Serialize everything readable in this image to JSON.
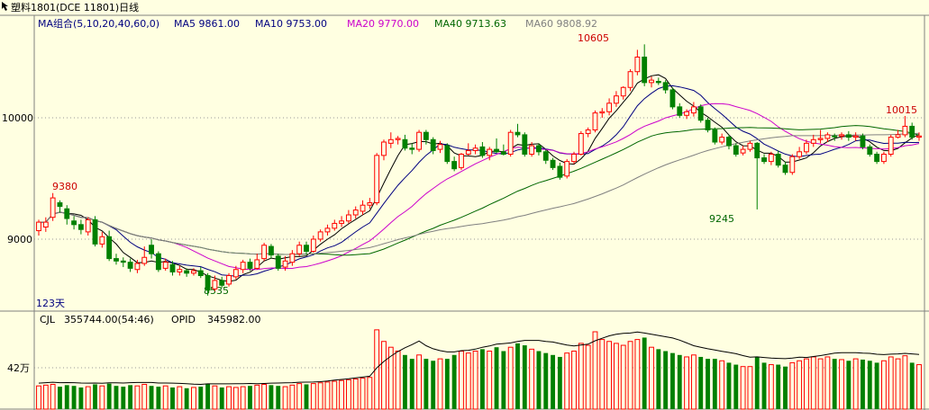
{
  "header": {
    "icon": "arrow-icon",
    "title": "塑料1801(DCE 11801)日线",
    "indicator_name": "MA组合(5,10,20,40,60,0)",
    "ma_labels": [
      {
        "text": "MA5 9861.00",
        "color": "#000080"
      },
      {
        "text": "MA10 9753.00",
        "color": "#000080"
      },
      {
        "text": "MA20 9770.00",
        "color": "#CC00CC"
      },
      {
        "text": "MA40 9713.63",
        "color": "#006600"
      },
      {
        "text": "MA60 9808.92",
        "color": "#808080"
      }
    ]
  },
  "volume_header": {
    "cjl": "CJL",
    "cjl_value": "355744.00(54:46)",
    "opid": "OPID",
    "opid_value": "345982.00"
  },
  "labels": {
    "days": "123天",
    "y_tick_10000": "10000",
    "y_tick_9000": "9000",
    "vol_tick": "42万"
  },
  "annotations": {
    "high_left": "9380",
    "low_left": "8535",
    "peak": "10605",
    "mid_low": "9245",
    "right_high": "10015"
  },
  "colors": {
    "up": "#FF0000",
    "down": "#008000",
    "bg": "#FFFFE1"
  },
  "chart_data": {
    "type": "candlestick",
    "y_ticks": [
      9000,
      10000
    ],
    "bars": [
      [
        9070,
        9140,
        9160,
        9030,
        "u",
        60
      ],
      [
        9100,
        9140,
        9180,
        9060,
        "u",
        62
      ],
      [
        9180,
        9340,
        9380,
        9150,
        "u",
        64
      ],
      [
        9300,
        9270,
        9320,
        9220,
        "d",
        58
      ],
      [
        9250,
        9170,
        9280,
        9120,
        "d",
        62
      ],
      [
        9150,
        9120,
        9190,
        9080,
        "d",
        60
      ],
      [
        9120,
        9080,
        9160,
        9040,
        "d",
        56
      ],
      [
        9060,
        9160,
        9180,
        9030,
        "u",
        58
      ],
      [
        9160,
        8960,
        9190,
        8940,
        "d",
        64
      ],
      [
        8960,
        9020,
        9060,
        8930,
        "u",
        60
      ],
      [
        9020,
        8840,
        9070,
        8820,
        "d",
        66
      ],
      [
        8840,
        8820,
        8880,
        8790,
        "d",
        60
      ],
      [
        8820,
        8810,
        8850,
        8770,
        "d",
        58
      ],
      [
        8810,
        8760,
        8840,
        8730,
        "d",
        62
      ],
      [
        8750,
        8800,
        8830,
        8720,
        "u",
        60
      ],
      [
        8800,
        8850,
        8940,
        8780,
        "u",
        64
      ],
      [
        8950,
        8880,
        9000,
        8840,
        "d",
        60
      ],
      [
        8880,
        8750,
        8900,
        8730,
        "d",
        58
      ],
      [
        8760,
        8810,
        8840,
        8740,
        "u",
        60
      ],
      [
        8790,
        8730,
        8820,
        8700,
        "d",
        56
      ],
      [
        8730,
        8750,
        8780,
        8700,
        "u",
        58
      ],
      [
        8740,
        8720,
        8760,
        8690,
        "d",
        54
      ],
      [
        8720,
        8740,
        8760,
        8700,
        "u",
        56
      ],
      [
        8740,
        8700,
        8770,
        8680,
        "d",
        58
      ],
      [
        8700,
        8580,
        8720,
        8535,
        "d",
        66
      ],
      [
        8590,
        8660,
        8700,
        8570,
        "u",
        60
      ],
      [
        8660,
        8620,
        8690,
        8600,
        "d",
        56
      ],
      [
        8630,
        8700,
        8720,
        8610,
        "u",
        58
      ],
      [
        8690,
        8750,
        8780,
        8670,
        "u",
        56
      ],
      [
        8750,
        8810,
        8830,
        8720,
        "u",
        58
      ],
      [
        8810,
        8760,
        8840,
        8740,
        "d",
        60
      ],
      [
        8760,
        8830,
        8880,
        8750,
        "u",
        62
      ],
      [
        8840,
        8950,
        8970,
        8820,
        "u",
        64
      ],
      [
        8940,
        8870,
        8960,
        8840,
        "d",
        62
      ],
      [
        8860,
        8760,
        8880,
        8740,
        "d",
        60
      ],
      [
        8770,
        8820,
        8860,
        8740,
        "u",
        58
      ],
      [
        8810,
        8880,
        8910,
        8780,
        "u",
        62
      ],
      [
        8880,
        8950,
        8980,
        8860,
        "u",
        66
      ],
      [
        8950,
        8900,
        8980,
        8870,
        "d",
        64
      ],
      [
        8900,
        9000,
        9030,
        8890,
        "u",
        66
      ],
      [
        9000,
        9060,
        9080,
        8980,
        "u",
        68
      ],
      [
        9060,
        9090,
        9120,
        9030,
        "u",
        70
      ],
      [
        9090,
        9130,
        9160,
        9070,
        "u",
        72
      ],
      [
        9130,
        9150,
        9190,
        9100,
        "u",
        74
      ],
      [
        9150,
        9200,
        9240,
        9130,
        "u",
        76
      ],
      [
        9200,
        9240,
        9270,
        9170,
        "u",
        78
      ],
      [
        9230,
        9280,
        9320,
        9200,
        "u",
        80
      ],
      [
        9280,
        9300,
        9340,
        9250,
        "u",
        82
      ],
      [
        9300,
        9690,
        9710,
        9280,
        "u",
        205
      ],
      [
        9690,
        9800,
        9820,
        9650,
        "u",
        175
      ],
      [
        9790,
        9820,
        9880,
        9750,
        "u",
        160
      ],
      [
        9820,
        9830,
        9850,
        9780,
        "u",
        150
      ],
      [
        9820,
        9750,
        9860,
        9730,
        "d",
        140
      ],
      [
        9750,
        9740,
        9790,
        9700,
        "d",
        130
      ],
      [
        9740,
        9880,
        9900,
        9720,
        "u",
        140
      ],
      [
        9880,
        9820,
        9900,
        9780,
        "d",
        130
      ],
      [
        9820,
        9730,
        9840,
        9700,
        "d",
        125
      ],
      [
        9740,
        9780,
        9810,
        9710,
        "u",
        130
      ],
      [
        9770,
        9640,
        9790,
        9620,
        "d",
        130
      ],
      [
        9640,
        9580,
        9680,
        9560,
        "d",
        140
      ],
      [
        9590,
        9700,
        9710,
        9570,
        "u",
        150
      ],
      [
        9700,
        9730,
        9790,
        9690,
        "u",
        145
      ],
      [
        9730,
        9750,
        9780,
        9700,
        "u",
        150
      ],
      [
        9760,
        9690,
        9800,
        9670,
        "d",
        155
      ],
      [
        9690,
        9740,
        9760,
        9650,
        "u",
        150
      ],
      [
        9740,
        9720,
        9830,
        9710,
        "d",
        160
      ],
      [
        9720,
        9700,
        9780,
        9690,
        "d",
        150
      ],
      [
        9700,
        9880,
        9900,
        9680,
        "u",
        160
      ],
      [
        9880,
        9860,
        9950,
        9840,
        "d",
        170
      ],
      [
        9860,
        9700,
        9880,
        9680,
        "d",
        165
      ],
      [
        9700,
        9770,
        9800,
        9680,
        "u",
        155
      ],
      [
        9770,
        9720,
        9790,
        9690,
        "d",
        150
      ],
      [
        9720,
        9650,
        9740,
        9620,
        "d",
        145
      ],
      [
        9650,
        9590,
        9670,
        9570,
        "d",
        140
      ],
      [
        9600,
        9510,
        9630,
        9490,
        "d",
        135
      ],
      [
        9520,
        9640,
        9660,
        9500,
        "u",
        145
      ],
      [
        9640,
        9700,
        9720,
        9620,
        "u",
        150
      ],
      [
        9700,
        9870,
        9890,
        9690,
        "u",
        170
      ],
      [
        9870,
        9900,
        9920,
        9840,
        "u",
        165
      ],
      [
        9900,
        10040,
        10060,
        9880,
        "u",
        200
      ],
      [
        10040,
        10050,
        10080,
        10000,
        "u",
        180
      ],
      [
        10050,
        10120,
        10160,
        10020,
        "u",
        175
      ],
      [
        10120,
        10180,
        10220,
        10090,
        "u",
        170
      ],
      [
        10180,
        10250,
        10260,
        10150,
        "u",
        165
      ],
      [
        10250,
        10380,
        10400,
        10220,
        "u",
        175
      ],
      [
        10380,
        10500,
        10560,
        10350,
        "u",
        180
      ],
      [
        10500,
        10290,
        10605,
        10260,
        "d",
        185
      ],
      [
        10290,
        10310,
        10340,
        10250,
        "u",
        160
      ],
      [
        10300,
        10290,
        10330,
        10270,
        "d",
        155
      ],
      [
        10290,
        10230,
        10310,
        10200,
        "d",
        150
      ],
      [
        10230,
        10090,
        10250,
        10070,
        "d",
        145
      ],
      [
        10090,
        10020,
        10120,
        10000,
        "d",
        140
      ],
      [
        10020,
        10050,
        10070,
        9990,
        "u",
        135
      ],
      [
        10040,
        10090,
        10130,
        10010,
        "u",
        140
      ],
      [
        10090,
        9980,
        10110,
        9960,
        "d",
        135
      ],
      [
        9980,
        9900,
        10000,
        9880,
        "d",
        130
      ],
      [
        9900,
        9800,
        9920,
        9780,
        "d",
        130
      ],
      [
        9800,
        9840,
        9870,
        9780,
        "u",
        125
      ],
      [
        9840,
        9770,
        9860,
        9740,
        "d",
        120
      ],
      [
        9770,
        9700,
        9790,
        9680,
        "d",
        115
      ],
      [
        9710,
        9740,
        9770,
        9690,
        "u",
        110
      ],
      [
        9740,
        9790,
        9810,
        9720,
        "u",
        110
      ],
      [
        9790,
        9670,
        9800,
        9245,
        "d",
        135
      ],
      [
        9670,
        9640,
        9700,
        9620,
        "d",
        120
      ],
      [
        9640,
        9700,
        9720,
        9610,
        "u",
        115
      ],
      [
        9700,
        9610,
        9730,
        9590,
        "d",
        115
      ],
      [
        9610,
        9550,
        9640,
        9530,
        "d",
        110
      ],
      [
        9550,
        9680,
        9700,
        9530,
        "u",
        120
      ],
      [
        9680,
        9720,
        9760,
        9660,
        "u",
        125
      ],
      [
        9720,
        9790,
        9820,
        9700,
        "u",
        130
      ],
      [
        9790,
        9820,
        9860,
        9760,
        "u",
        135
      ],
      [
        9820,
        9830,
        9900,
        9790,
        "u",
        130
      ],
      [
        9830,
        9860,
        9880,
        9800,
        "u",
        135
      ],
      [
        9850,
        9850,
        9870,
        9810,
        "d",
        130
      ],
      [
        9850,
        9860,
        9880,
        9820,
        "u",
        128
      ],
      [
        9860,
        9840,
        9890,
        9810,
        "d",
        125
      ],
      [
        9840,
        9850,
        9880,
        9810,
        "u",
        130
      ],
      [
        9850,
        9760,
        9870,
        9740,
        "d",
        128
      ],
      [
        9760,
        9700,
        9780,
        9680,
        "d",
        125
      ],
      [
        9700,
        9640,
        9720,
        9620,
        "d",
        120
      ],
      [
        9640,
        9700,
        9720,
        9620,
        "u",
        125
      ],
      [
        9700,
        9840,
        9860,
        9680,
        "u",
        135
      ],
      [
        9840,
        9860,
        9900,
        9830,
        "u",
        130
      ],
      [
        9860,
        9930,
        10015,
        9840,
        "u",
        138
      ],
      [
        9930,
        9840,
        9960,
        9820,
        "d",
        120
      ],
      [
        9840,
        9850,
        9880,
        9810,
        "u",
        115
      ]
    ]
  }
}
